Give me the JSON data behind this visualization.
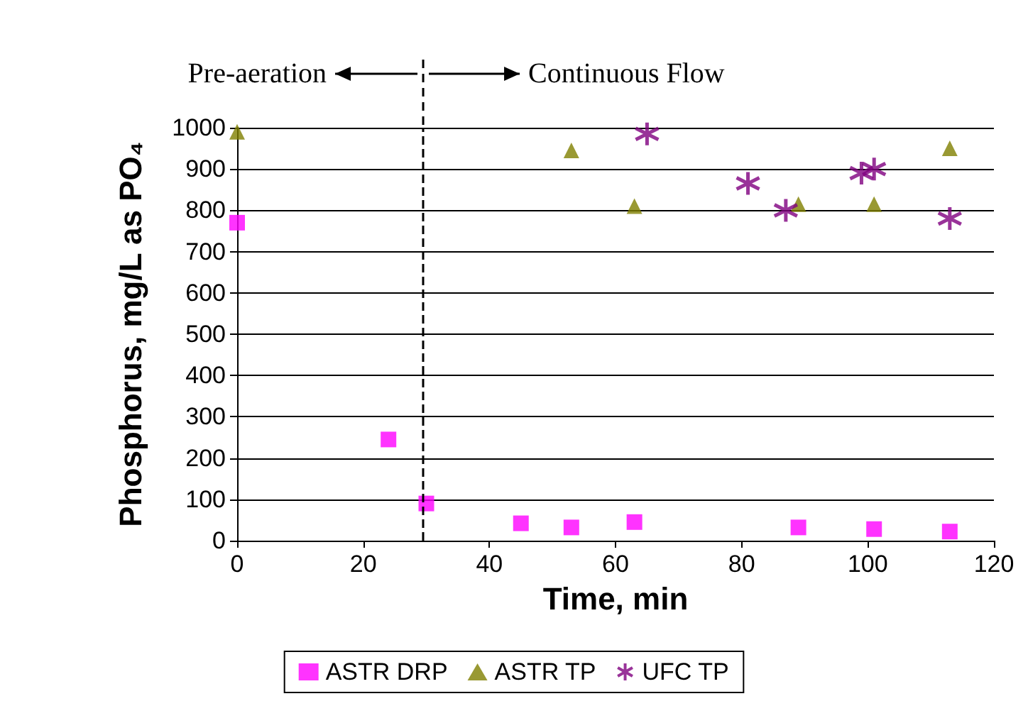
{
  "chart_data": {
    "type": "scatter",
    "ylabel": "Phosphorus, mg/L as PO₄",
    "xlabel": "Time, min",
    "annotations": [
      "Pre-aeration",
      "Continuous Flow"
    ],
    "series": [
      {
        "name": "ASTR DRP",
        "color": "#ff00ff",
        "marker": "square",
        "x": [
          0,
          24,
          30,
          45,
          53,
          63,
          89,
          101,
          113
        ],
        "values": [
          770,
          245,
          90,
          42,
          32,
          45,
          32,
          28,
          22
        ]
      },
      {
        "name": "ASTR TP",
        "color": "#808000",
        "marker": "triangle",
        "x": [
          0,
          53,
          63,
          89,
          101,
          113
        ],
        "values": [
          990,
          945,
          810,
          815,
          815,
          950
        ]
      },
      {
        "name": "UFC TP",
        "color": "#800080",
        "marker": "cross",
        "x": [
          65,
          81,
          87,
          99,
          101,
          113
        ],
        "values": [
          985,
          865,
          800,
          890,
          900,
          780
        ]
      }
    ],
    "xlim": [
      0,
      120
    ],
    "xticks": [
      0,
      20,
      40,
      60,
      80,
      100,
      120
    ],
    "ylim": [
      0,
      1000
    ],
    "yticks": [
      0,
      100,
      200,
      300,
      400,
      500,
      600,
      700,
      800,
      900,
      1000
    ],
    "grid": "y",
    "legend": "bottom",
    "ref_lines": [
      {
        "axis": "x",
        "value": 29.5,
        "line_style": "dashed",
        "color": "#000000"
      }
    ]
  }
}
